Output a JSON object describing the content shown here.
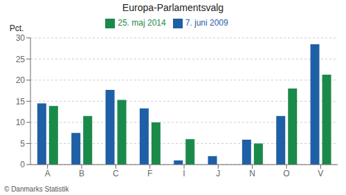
{
  "chart_data": {
    "type": "bar",
    "title": "Europa-Parlamentsvalg",
    "categories": [
      "A",
      "B",
      "C",
      "F",
      "I",
      "J",
      "N",
      "O",
      "V"
    ],
    "series": [
      {
        "name": "7. juni 2009",
        "color": "#1f5fa6",
        "values": [
          14.5,
          7.5,
          17.7,
          13.3,
          1.0,
          2.0,
          5.9,
          11.5,
          28.5
        ]
      },
      {
        "name": "25. maj 2014",
        "color": "#1a8a4a",
        "values": [
          13.9,
          11.5,
          15.3,
          10.0,
          6.0,
          0.0,
          5.0,
          18.0,
          21.3
        ]
      }
    ],
    "ylabel": "Pct.",
    "ylim": [
      0,
      30
    ],
    "yticks": [
      0,
      5,
      10,
      15,
      20,
      25,
      30
    ],
    "grid": true,
    "legend": "top",
    "annotations": [
      "© Danmarks Statistik"
    ]
  }
}
